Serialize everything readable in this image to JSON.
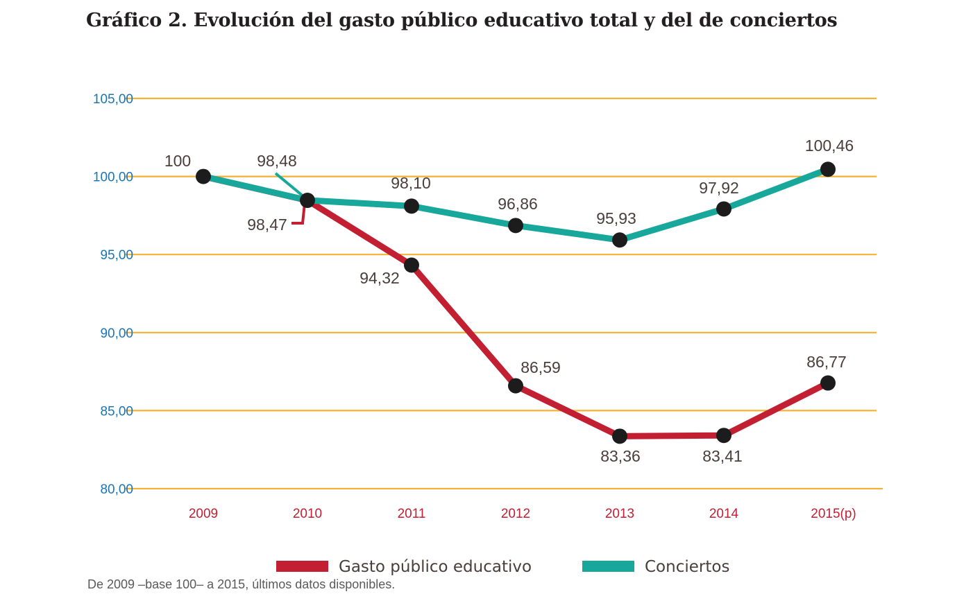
{
  "title": "Gráfico 2. Evolución del gasto público educativo total y del de conciertos",
  "footnote": "De 2009 –base 100– a 2015, últimos datos disponibles.",
  "colors": {
    "grid": "#f5b133",
    "y_tick": "#1a75b5",
    "x_tick": "#c21f32",
    "label": "#4a3e3a",
    "marker": "#1c1c1c"
  },
  "chart_data": {
    "type": "line",
    "title": "Gráfico 2. Evolución del gasto público educativo total y del de conciertos",
    "categories": [
      "2009",
      "2010",
      "2011",
      "2012",
      "2013",
      "2014",
      "2015(p)"
    ],
    "y_ticks": [
      "105,00",
      "100,00",
      "95,00",
      "90,00",
      "85,00",
      "80,00"
    ],
    "ylim": [
      80,
      105
    ],
    "grid": true,
    "legend_position": "bottom",
    "series": [
      {
        "name": "Gasto público educativo",
        "color": "#c21f32",
        "values": [
          100,
          98.47,
          94.32,
          86.59,
          83.36,
          83.41,
          86.77
        ],
        "labels": [
          "100",
          "98,47",
          "94,32",
          "86,59",
          "83,36",
          "83,41",
          "86,77"
        ]
      },
      {
        "name": "Conciertos",
        "color": "#17a89b",
        "values": [
          100,
          98.48,
          98.1,
          96.86,
          95.93,
          97.92,
          100.46
        ],
        "labels": [
          "",
          "98,48",
          "98,10",
          "96,86",
          "95,93",
          "97,92",
          "100,46"
        ]
      }
    ]
  }
}
